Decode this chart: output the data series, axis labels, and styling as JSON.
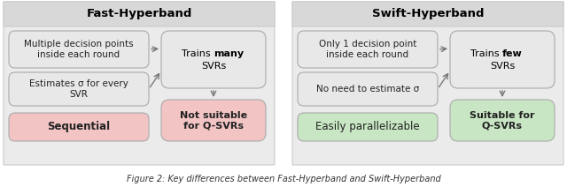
{
  "title_left": "Fast-Hyperband",
  "title_right": "Swift-Hyperband",
  "caption": "Figure 2: Key differences between Fast-Hyperband and Swift-Hyperband",
  "left_input_box1": "Multiple decision points\ninside each round",
  "left_input_box2": "Estimates σ for every\nSVR",
  "left_bottom_box": "Sequential",
  "left_result_top": {
    "normal": "Trains ",
    "bold": "many",
    "rest": "\nSVRs"
  },
  "left_result_bot": "Not suitable\nfor Q-SVRs",
  "right_input_box1": "Only 1 decision point\ninside each round",
  "right_input_box2": "No need to estimate σ",
  "right_bottom_box": "Easily parallelizable",
  "right_result_top": {
    "normal": "Trains ",
    "bold": "few",
    "rest": "\nSVRs"
  },
  "right_result_bot": "Suitable for\nQ-SVRs",
  "color_light_gray": "#e8e8e8",
  "color_pink": "#f2c4c4",
  "color_green": "#c8e6c4",
  "color_header": "#d8d8d8",
  "color_panel": "#ebebeb",
  "color_arrow": "#777777",
  "color_edge": "#aaaaaa"
}
